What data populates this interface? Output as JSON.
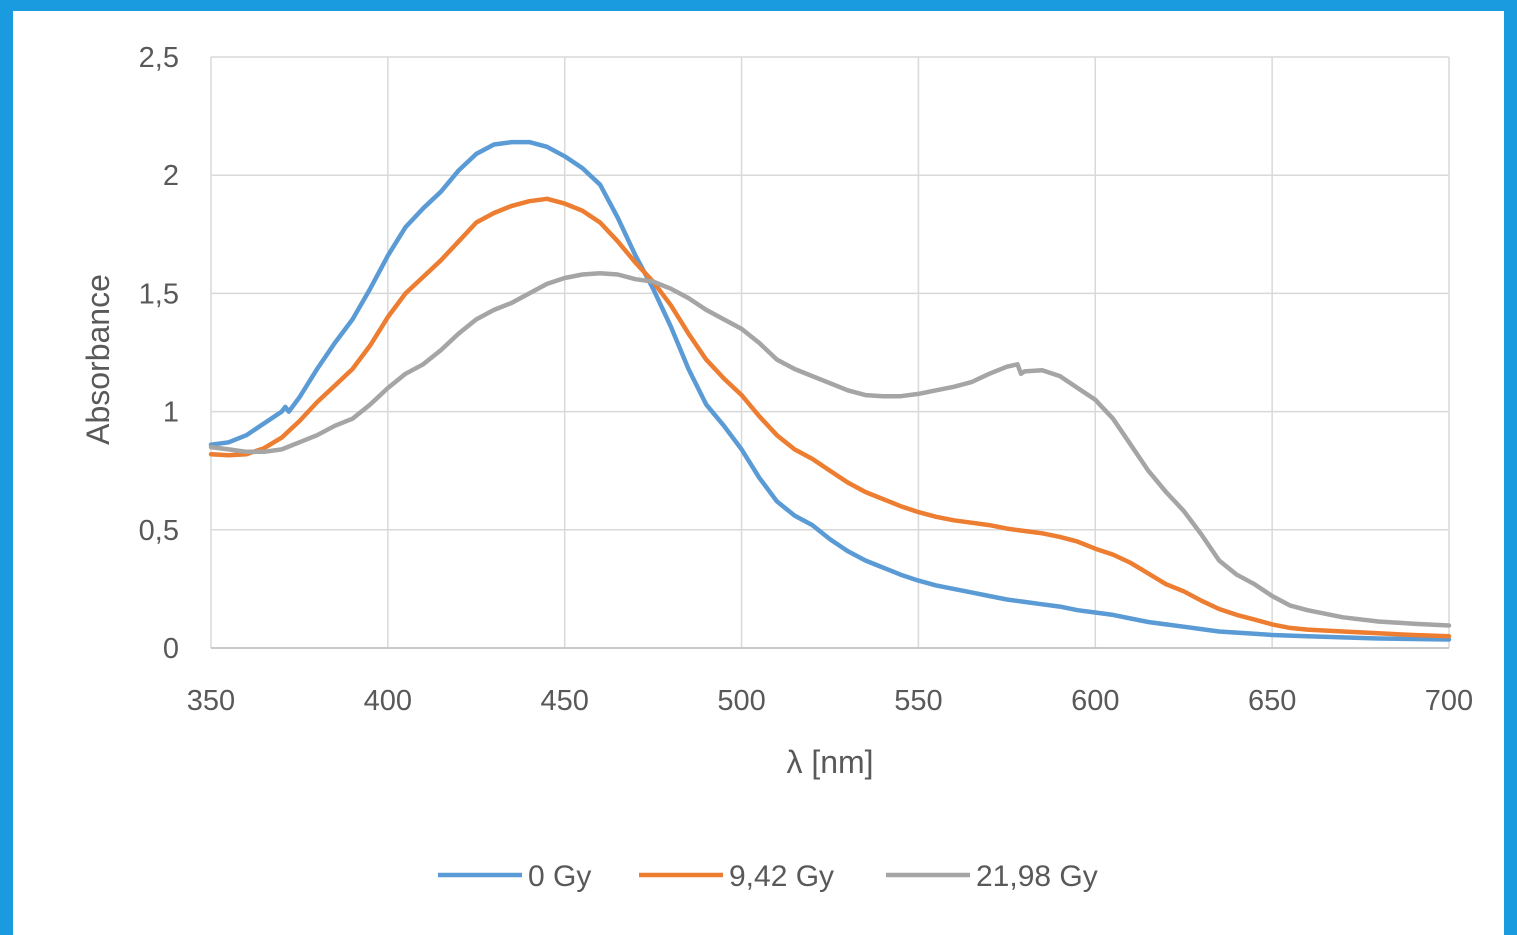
{
  "chart_data": {
    "type": "line",
    "title": "",
    "xlabel": "λ [nm]",
    "ylabel": "Absorbance",
    "xlim": [
      350,
      700
    ],
    "ylim": [
      0,
      2.5
    ],
    "x_ticks": [
      350,
      400,
      450,
      500,
      550,
      600,
      650,
      700
    ],
    "y_ticks": [
      0,
      0.5,
      1,
      1.5,
      2,
      2.5
    ],
    "x_tick_labels": [
      "350",
      "400",
      "450",
      "500",
      "550",
      "600",
      "650",
      "700"
    ],
    "y_tick_labels": [
      "0",
      "0,5",
      "1",
      "1,5",
      "2",
      "2,5"
    ],
    "grid": true,
    "legend_position": "bottom",
    "series": [
      {
        "name": "0 Gy",
        "color": "#5b9bd5",
        "points": [
          [
            350,
            0.86
          ],
          [
            355,
            0.87
          ],
          [
            360,
            0.9
          ],
          [
            365,
            0.95
          ],
          [
            370,
            1.0
          ],
          [
            371,
            1.02
          ],
          [
            372,
            1.0
          ],
          [
            375,
            1.06
          ],
          [
            380,
            1.18
          ],
          [
            385,
            1.29
          ],
          [
            390,
            1.39
          ],
          [
            395,
            1.52
          ],
          [
            400,
            1.66
          ],
          [
            405,
            1.78
          ],
          [
            410,
            1.86
          ],
          [
            415,
            1.93
          ],
          [
            420,
            2.02
          ],
          [
            425,
            2.09
          ],
          [
            430,
            2.13
          ],
          [
            435,
            2.14
          ],
          [
            440,
            2.14
          ],
          [
            445,
            2.12
          ],
          [
            450,
            2.08
          ],
          [
            455,
            2.03
          ],
          [
            460,
            1.96
          ],
          [
            465,
            1.82
          ],
          [
            470,
            1.66
          ],
          [
            475,
            1.52
          ],
          [
            480,
            1.36
          ],
          [
            485,
            1.18
          ],
          [
            490,
            1.03
          ],
          [
            495,
            0.94
          ],
          [
            500,
            0.84
          ],
          [
            505,
            0.72
          ],
          [
            510,
            0.62
          ],
          [
            515,
            0.56
          ],
          [
            520,
            0.52
          ],
          [
            525,
            0.46
          ],
          [
            530,
            0.41
          ],
          [
            535,
            0.37
          ],
          [
            540,
            0.34
          ],
          [
            545,
            0.31
          ],
          [
            550,
            0.285
          ],
          [
            555,
            0.265
          ],
          [
            560,
            0.25
          ],
          [
            565,
            0.235
          ],
          [
            570,
            0.22
          ],
          [
            575,
            0.205
          ],
          [
            580,
            0.195
          ],
          [
            585,
            0.185
          ],
          [
            590,
            0.175
          ],
          [
            595,
            0.16
          ],
          [
            600,
            0.15
          ],
          [
            605,
            0.14
          ],
          [
            610,
            0.125
          ],
          [
            615,
            0.11
          ],
          [
            620,
            0.1
          ],
          [
            625,
            0.09
          ],
          [
            630,
            0.08
          ],
          [
            635,
            0.07
          ],
          [
            640,
            0.065
          ],
          [
            645,
            0.06
          ],
          [
            650,
            0.055
          ],
          [
            660,
            0.05
          ],
          [
            670,
            0.045
          ],
          [
            680,
            0.04
          ],
          [
            690,
            0.038
          ],
          [
            700,
            0.036
          ]
        ]
      },
      {
        "name": "9,42 Gy",
        "color": "#ed7d31",
        "points": [
          [
            350,
            0.82
          ],
          [
            355,
            0.815
          ],
          [
            360,
            0.82
          ],
          [
            365,
            0.845
          ],
          [
            370,
            0.89
          ],
          [
            375,
            0.96
          ],
          [
            380,
            1.04
          ],
          [
            385,
            1.11
          ],
          [
            390,
            1.18
          ],
          [
            395,
            1.28
          ],
          [
            400,
            1.4
          ],
          [
            405,
            1.5
          ],
          [
            410,
            1.57
          ],
          [
            415,
            1.64
          ],
          [
            420,
            1.72
          ],
          [
            425,
            1.8
          ],
          [
            430,
            1.84
          ],
          [
            435,
            1.87
          ],
          [
            440,
            1.89
          ],
          [
            445,
            1.9
          ],
          [
            450,
            1.88
          ],
          [
            455,
            1.85
          ],
          [
            460,
            1.8
          ],
          [
            465,
            1.72
          ],
          [
            470,
            1.63
          ],
          [
            475,
            1.55
          ],
          [
            480,
            1.45
          ],
          [
            485,
            1.33
          ],
          [
            490,
            1.22
          ],
          [
            495,
            1.14
          ],
          [
            500,
            1.07
          ],
          [
            505,
            0.98
          ],
          [
            510,
            0.9
          ],
          [
            515,
            0.84
          ],
          [
            520,
            0.8
          ],
          [
            525,
            0.75
          ],
          [
            530,
            0.7
          ],
          [
            535,
            0.66
          ],
          [
            540,
            0.63
          ],
          [
            545,
            0.6
          ],
          [
            550,
            0.575
          ],
          [
            555,
            0.555
          ],
          [
            560,
            0.54
          ],
          [
            565,
            0.53
          ],
          [
            570,
            0.52
          ],
          [
            575,
            0.505
          ],
          [
            580,
            0.495
          ],
          [
            585,
            0.485
          ],
          [
            590,
            0.47
          ],
          [
            595,
            0.45
          ],
          [
            600,
            0.42
          ],
          [
            605,
            0.395
          ],
          [
            610,
            0.36
          ],
          [
            615,
            0.315
          ],
          [
            620,
            0.27
          ],
          [
            625,
            0.24
          ],
          [
            630,
            0.2
          ],
          [
            635,
            0.165
          ],
          [
            640,
            0.14
          ],
          [
            645,
            0.12
          ],
          [
            650,
            0.1
          ],
          [
            655,
            0.085
          ],
          [
            660,
            0.078
          ],
          [
            670,
            0.07
          ],
          [
            680,
            0.062
          ],
          [
            690,
            0.055
          ],
          [
            700,
            0.05
          ]
        ]
      },
      {
        "name": "21,98 Gy",
        "color": "#a5a5a5",
        "points": [
          [
            350,
            0.85
          ],
          [
            355,
            0.84
          ],
          [
            360,
            0.83
          ],
          [
            365,
            0.83
          ],
          [
            370,
            0.84
          ],
          [
            375,
            0.87
          ],
          [
            380,
            0.9
          ],
          [
            385,
            0.94
          ],
          [
            390,
            0.97
          ],
          [
            395,
            1.03
          ],
          [
            400,
            1.1
          ],
          [
            405,
            1.16
          ],
          [
            410,
            1.2
          ],
          [
            415,
            1.26
          ],
          [
            420,
            1.33
          ],
          [
            425,
            1.39
          ],
          [
            430,
            1.43
          ],
          [
            435,
            1.46
          ],
          [
            440,
            1.5
          ],
          [
            445,
            1.54
          ],
          [
            450,
            1.565
          ],
          [
            455,
            1.58
          ],
          [
            460,
            1.585
          ],
          [
            465,
            1.58
          ],
          [
            470,
            1.56
          ],
          [
            475,
            1.55
          ],
          [
            480,
            1.52
          ],
          [
            485,
            1.48
          ],
          [
            490,
            1.43
          ],
          [
            495,
            1.39
          ],
          [
            500,
            1.35
          ],
          [
            505,
            1.29
          ],
          [
            510,
            1.22
          ],
          [
            515,
            1.18
          ],
          [
            520,
            1.15
          ],
          [
            525,
            1.12
          ],
          [
            530,
            1.09
          ],
          [
            535,
            1.07
          ],
          [
            540,
            1.065
          ],
          [
            545,
            1.065
          ],
          [
            550,
            1.075
          ],
          [
            555,
            1.09
          ],
          [
            560,
            1.105
          ],
          [
            565,
            1.125
          ],
          [
            570,
            1.16
          ],
          [
            575,
            1.19
          ],
          [
            578,
            1.2
          ],
          [
            579,
            1.16
          ],
          [
            580,
            1.17
          ],
          [
            585,
            1.175
          ],
          [
            590,
            1.15
          ],
          [
            595,
            1.1
          ],
          [
            600,
            1.05
          ],
          [
            605,
            0.97
          ],
          [
            610,
            0.86
          ],
          [
            615,
            0.75
          ],
          [
            620,
            0.66
          ],
          [
            625,
            0.58
          ],
          [
            630,
            0.48
          ],
          [
            635,
            0.37
          ],
          [
            640,
            0.31
          ],
          [
            645,
            0.27
          ],
          [
            650,
            0.22
          ],
          [
            655,
            0.18
          ],
          [
            660,
            0.16
          ],
          [
            670,
            0.13
          ],
          [
            680,
            0.112
          ],
          [
            690,
            0.103
          ],
          [
            700,
            0.095
          ]
        ]
      }
    ]
  }
}
